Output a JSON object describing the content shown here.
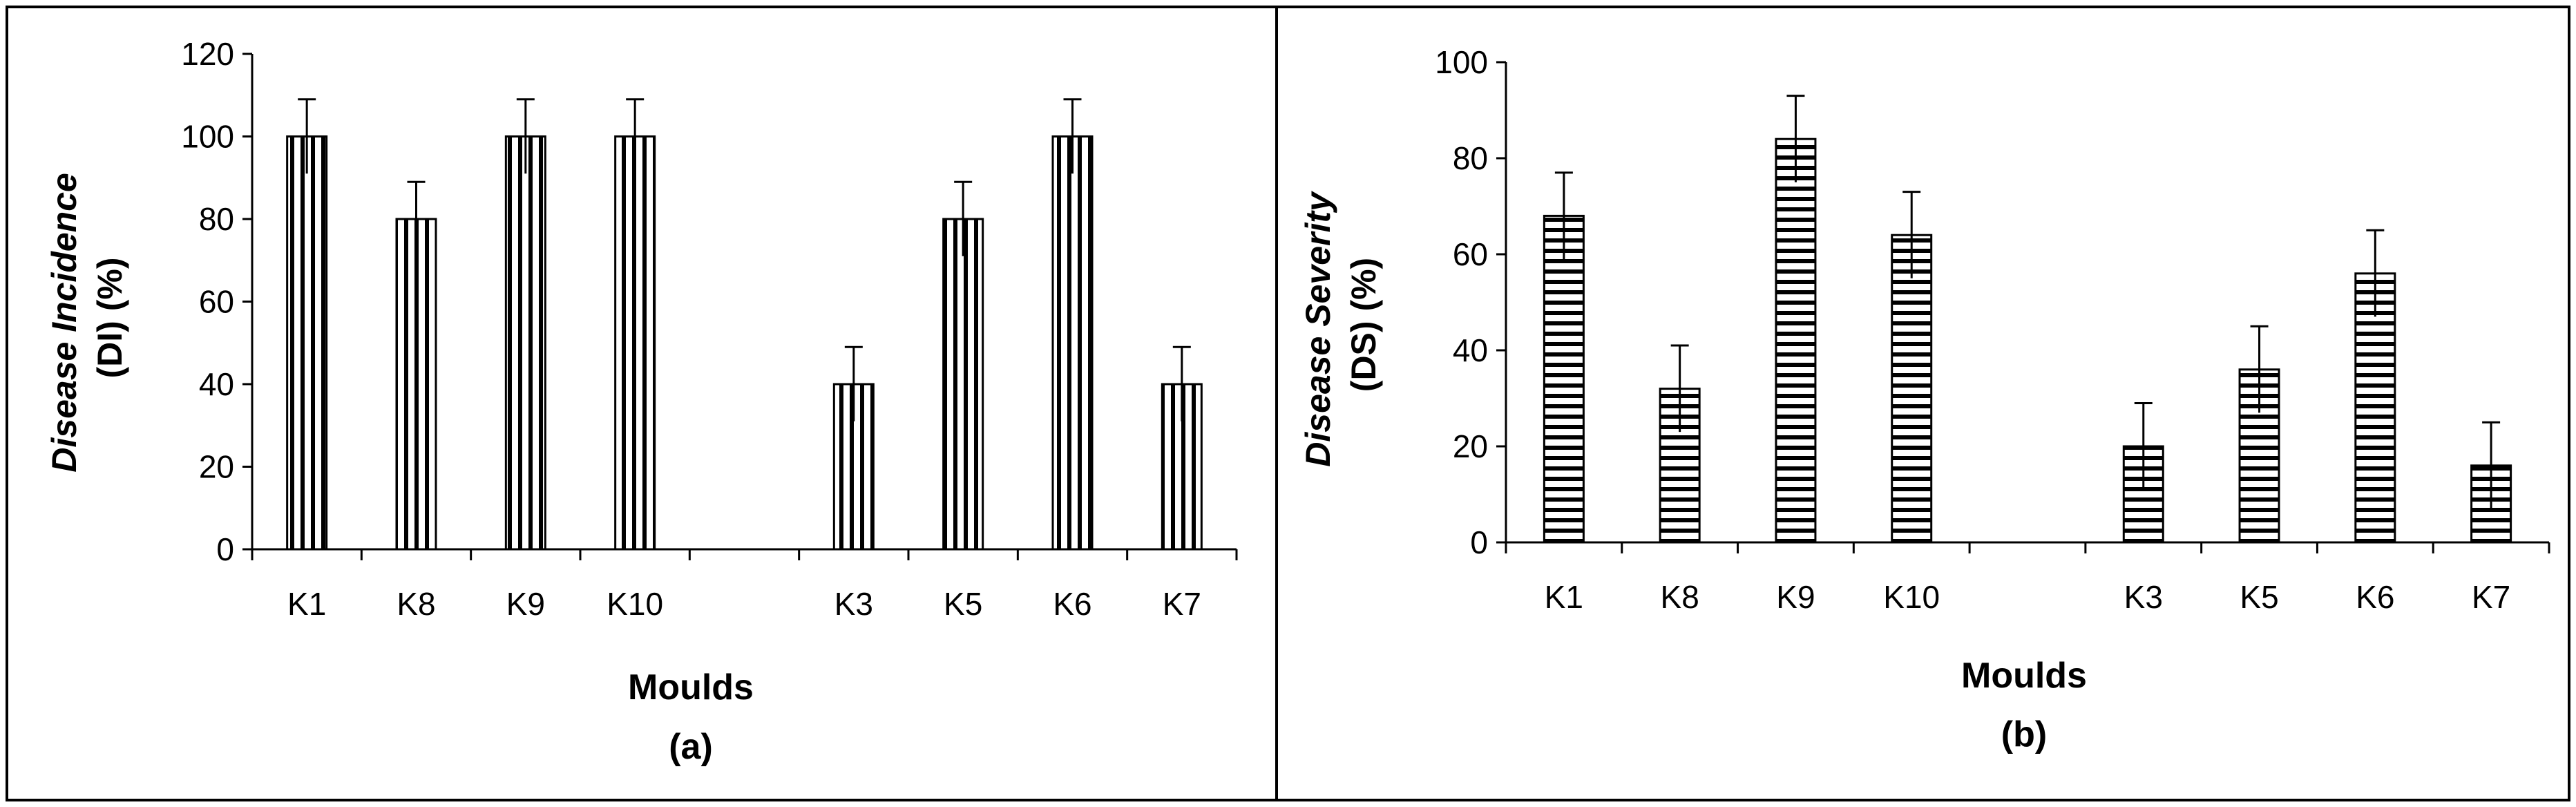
{
  "chart_data": [
    {
      "type": "bar",
      "categories": [
        "K1",
        "K8",
        "K9",
        "K10",
        "",
        "K3",
        "K5",
        "K6",
        "K7"
      ],
      "values": [
        100,
        80,
        100,
        100,
        null,
        40,
        80,
        100,
        40
      ],
      "error": [
        9,
        9,
        9,
        9,
        null,
        9,
        9,
        9,
        9
      ],
      "ylabel_italic": "Disease Incidence",
      "ylabel_plain": "(DI) (%)",
      "xlabel": "Moulds",
      "caption": "(a)",
      "ylim": [
        0,
        120
      ],
      "yticks": [
        0,
        20,
        40,
        60,
        80,
        100,
        120
      ],
      "pattern": "vertical-stripes",
      "grid": false
    },
    {
      "type": "bar",
      "categories": [
        "K1",
        "K8",
        "K9",
        "K10",
        "",
        "K3",
        "K5",
        "K6",
        "K7"
      ],
      "values": [
        68,
        32,
        84,
        64,
        null,
        20,
        36,
        56,
        16
      ],
      "error": [
        9,
        9,
        9,
        9,
        null,
        9,
        9,
        9,
        9
      ],
      "ylabel_italic": "Disease Severity",
      "ylabel_plain": "(DS) (%)",
      "xlabel": "Moulds",
      "caption": "(b)",
      "ylim": [
        0,
        100
      ],
      "yticks": [
        0,
        20,
        40,
        60,
        80,
        100
      ],
      "pattern": "horizontal-stripes",
      "grid": false
    }
  ]
}
